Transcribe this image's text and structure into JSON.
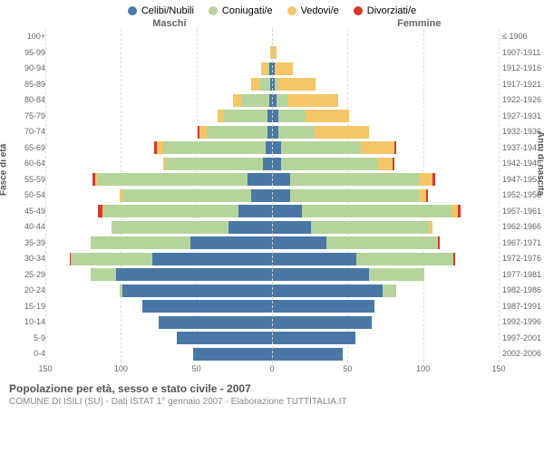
{
  "legend": [
    {
      "label": "Celibi/Nubili",
      "color": "#4a78a6"
    },
    {
      "label": "Coniugati/e",
      "color": "#b5d49b"
    },
    {
      "label": "Vedovi/e",
      "color": "#f4c668"
    },
    {
      "label": "Divorziati/e",
      "color": "#d63a2e"
    }
  ],
  "headers": {
    "left": "Maschi",
    "right": "Femmine"
  },
  "y_axis_left": "Fasce di età",
  "y_axis_right": "Anni di nascita",
  "x_axis": {
    "max": 150,
    "ticks": [
      150,
      100,
      50,
      0,
      50,
      100,
      150
    ]
  },
  "title": "Popolazione per età, sesso e stato civile - 2007",
  "subtitle": "COMUNE DI ISILI (SU) - Dati ISTAT 1° gennaio 2007 - Elaborazione TUTTITALIA.IT",
  "age_groups": [
    "100+",
    "95-99",
    "90-94",
    "85-89",
    "80-84",
    "75-79",
    "70-74",
    "65-69",
    "60-64",
    "55-59",
    "50-54",
    "45-49",
    "40-44",
    "35-39",
    "30-34",
    "25-29",
    "20-24",
    "15-19",
    "10-14",
    "5-9",
    "0-4"
  ],
  "birth_years": [
    "≤ 1906",
    "1907-1911",
    "1912-1916",
    "1917-1921",
    "1922-1926",
    "1927-1931",
    "1932-1936",
    "1937-1941",
    "1942-1946",
    "1947-1951",
    "1952-1956",
    "1957-1961",
    "1962-1966",
    "1967-1971",
    "1972-1976",
    "1977-1981",
    "1982-1986",
    "1987-1991",
    "1992-1996",
    "1997-2001",
    "2002-2006"
  ],
  "rows": [
    {
      "m": [
        0,
        0,
        0,
        0
      ],
      "f": [
        0,
        0,
        0,
        0
      ]
    },
    {
      "m": [
        0,
        0,
        1,
        0
      ],
      "f": [
        0,
        0,
        3,
        0
      ]
    },
    {
      "m": [
        2,
        1,
        4,
        0
      ],
      "f": [
        2,
        0,
        12,
        0
      ]
    },
    {
      "m": [
        1,
        7,
        6,
        0
      ],
      "f": [
        2,
        2,
        25,
        0
      ]
    },
    {
      "m": [
        2,
        18,
        6,
        0
      ],
      "f": [
        3,
        7,
        34,
        0
      ]
    },
    {
      "m": [
        3,
        29,
        4,
        0
      ],
      "f": [
        4,
        18,
        29,
        0
      ]
    },
    {
      "m": [
        3,
        40,
        5,
        1
      ],
      "f": [
        4,
        24,
        36,
        0
      ]
    },
    {
      "m": [
        4,
        68,
        4,
        2
      ],
      "f": [
        6,
        53,
        22,
        1
      ]
    },
    {
      "m": [
        6,
        65,
        1,
        0
      ],
      "f": [
        6,
        64,
        10,
        1
      ]
    },
    {
      "m": [
        16,
        99,
        2,
        2
      ],
      "f": [
        12,
        86,
        8,
        2
      ]
    },
    {
      "m": [
        14,
        85,
        2,
        0
      ],
      "f": [
        12,
        85,
        5,
        1
      ]
    },
    {
      "m": [
        22,
        89,
        1,
        3
      ],
      "f": [
        20,
        99,
        4,
        2
      ]
    },
    {
      "m": [
        29,
        77,
        0,
        0
      ],
      "f": [
        26,
        78,
        2,
        0
      ]
    },
    {
      "m": [
        54,
        66,
        0,
        0
      ],
      "f": [
        36,
        73,
        1,
        1
      ]
    },
    {
      "m": [
        79,
        54,
        0,
        1
      ],
      "f": [
        56,
        64,
        0,
        1
      ]
    },
    {
      "m": [
        103,
        17,
        0,
        0
      ],
      "f": [
        64,
        37,
        0,
        0
      ]
    },
    {
      "m": [
        99,
        2,
        0,
        0
      ],
      "f": [
        73,
        9,
        0,
        0
      ]
    },
    {
      "m": [
        86,
        0,
        0,
        0
      ],
      "f": [
        68,
        0,
        0,
        0
      ]
    },
    {
      "m": [
        75,
        0,
        0,
        0
      ],
      "f": [
        66,
        0,
        0,
        0
      ]
    },
    {
      "m": [
        63,
        0,
        0,
        0
      ],
      "f": [
        55,
        0,
        0,
        0
      ]
    },
    {
      "m": [
        52,
        0,
        0,
        0
      ],
      "f": [
        47,
        0,
        0,
        0
      ]
    }
  ],
  "colors": {
    "grid": "#dddddd",
    "centerline": "#cccccc",
    "background": "#ffffff"
  }
}
